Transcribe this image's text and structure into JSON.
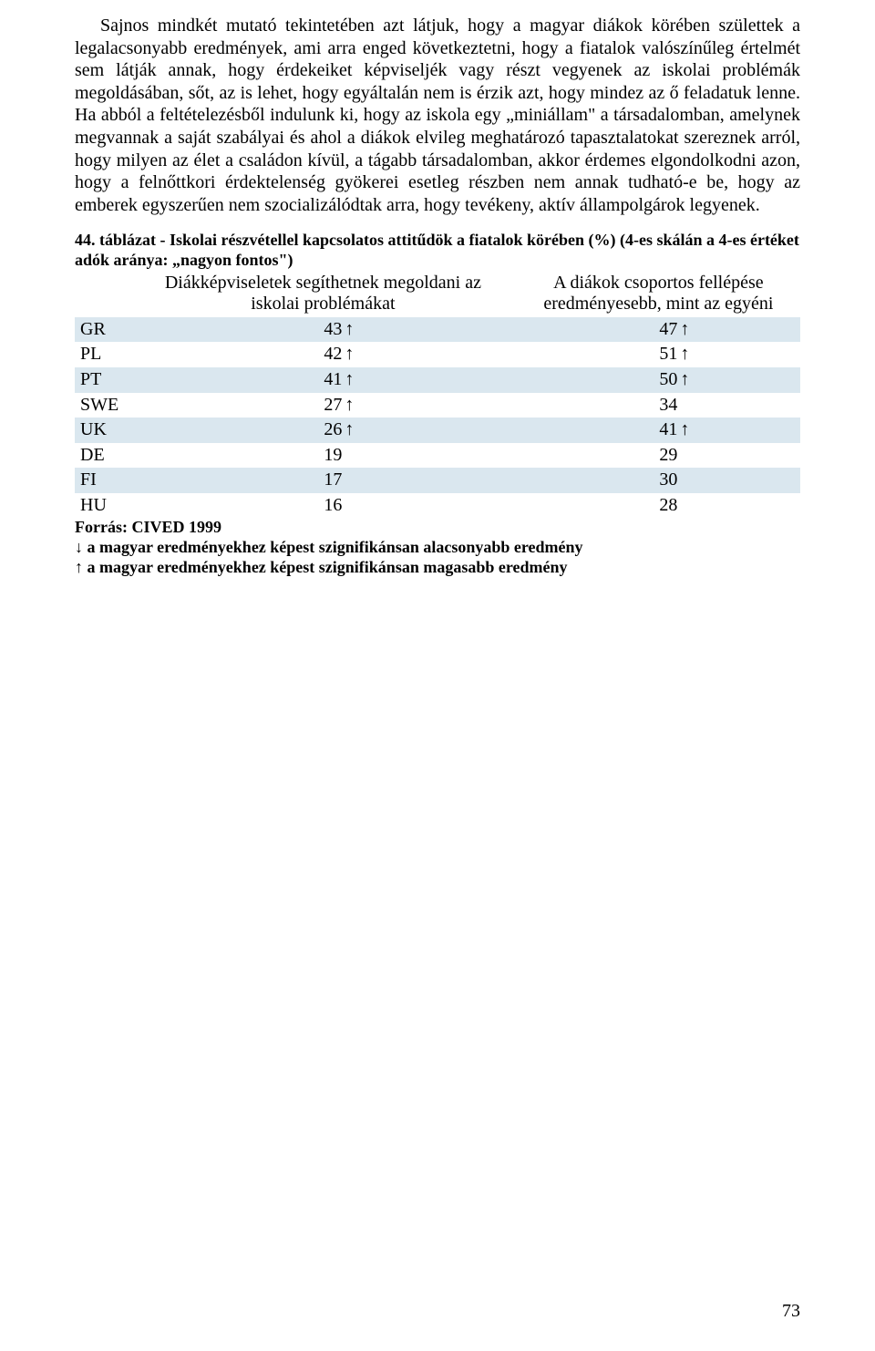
{
  "paragraph": "Sajnos mindkét mutató tekintetében azt látjuk, hogy a magyar diákok körében születtek a legalacsonyabb eredmények, ami arra enged következtetni, hogy a fiatalok valószínűleg értelmét sem látják annak, hogy érdekeiket képviseljék vagy részt vegyenek az iskolai problémák megoldásában, sőt, az is lehet, hogy egyáltalán nem is érzik azt, hogy mindez az ő feladatuk lenne. Ha abból a feltételezésből indulunk ki, hogy az iskola egy „miniállam\" a társadalomban, amelynek megvannak a saját szabályai és ahol a diákok elvileg meghatározó tapasztalatokat szereznek arról, hogy milyen az élet a családon kívül, a tágabb társadalomban, akkor érdemes elgondolkodni azon, hogy a felnőttkori érdektelenség gyökerei esetleg részben nem annak tudható-e be, hogy az emberek egyszerűen nem szocializálódtak arra, hogy tevékeny, aktív állampolgárok legyenek.",
  "caption": "44. táblázat - Iskolai részvétellel kapcsolatos attitűdök a fiatalok körében (%) (4-es skálán a 4-es értéket adók aránya: „nagyon fontos\")",
  "table": {
    "headers": {
      "col1_line1": "Diákképviseletek segíthetnek megoldani az",
      "col1_line2": "iskolai problémákat",
      "col2_line1": "A diákok csoportos fellépése",
      "col2_line2": "eredményesebb, mint az egyéni"
    },
    "rows": [
      {
        "country": "GR",
        "v1": "43",
        "a1": "↑",
        "v2": "47",
        "a2": "↑",
        "band": true
      },
      {
        "country": "PL",
        "v1": "42",
        "a1": "↑",
        "v2": "51",
        "a2": "↑",
        "band": false
      },
      {
        "country": "PT",
        "v1": "41",
        "a1": "↑",
        "v2": "50",
        "a2": "↑",
        "band": true
      },
      {
        "country": "SWE",
        "v1": "27",
        "a1": "↑",
        "v2": "34",
        "a2": "",
        "band": false
      },
      {
        "country": "UK",
        "v1": "26",
        "a1": "↑",
        "v2": "41",
        "a2": "↑",
        "band": true
      },
      {
        "country": "DE",
        "v1": "19",
        "a1": "",
        "v2": "29",
        "a2": "",
        "band": false
      },
      {
        "country": "FI",
        "v1": "17",
        "a1": "",
        "v2": "30",
        "a2": "",
        "band": true
      },
      {
        "country": "HU",
        "v1": "16",
        "a1": "",
        "v2": "28",
        "a2": "",
        "band": false
      }
    ]
  },
  "source": {
    "line1": "Forrás: CIVED 1999",
    "line2": "↓ a magyar eredményekhez képest szignifikánsan alacsonyabb eredmény",
    "line3": "↑ a magyar eredményekhez képest szignifikánsan magasabb eredmény"
  },
  "page_number": "73",
  "colors": {
    "band": "#dae7ef",
    "text": "#000000",
    "bg": "#ffffff"
  }
}
